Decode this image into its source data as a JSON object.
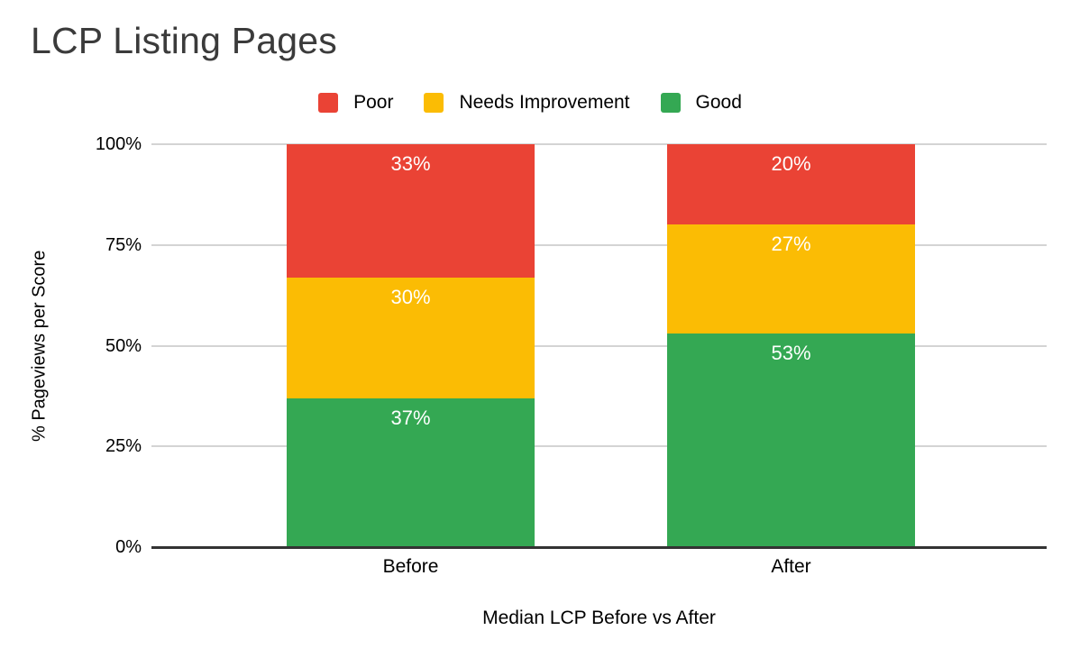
{
  "chart_data": {
    "type": "bar",
    "stacked": true,
    "title": "LCP Listing Pages",
    "xlabel": "Median LCP Before vs After",
    "ylabel": "% Pageviews per Score",
    "categories": [
      "Before",
      "After"
    ],
    "series": [
      {
        "name": "Poor",
        "color": "#EA4335",
        "values": [
          33,
          20
        ],
        "labels": [
          "33%",
          "20%"
        ]
      },
      {
        "name": "Needs Improvement",
        "color": "#FBBC04",
        "values": [
          30,
          27
        ],
        "labels": [
          "30%",
          "27%"
        ]
      },
      {
        "name": "Good",
        "color": "#34A853",
        "values": [
          37,
          53
        ],
        "labels": [
          "37%",
          "53%"
        ]
      }
    ],
    "stack_order": "top-to-bottom",
    "ylim": [
      0,
      100
    ],
    "y_ticks": [
      {
        "label": "0%",
        "value": 0
      },
      {
        "label": "25%",
        "value": 25
      },
      {
        "label": "50%",
        "value": 50
      },
      {
        "label": "75%",
        "value": 75
      },
      {
        "label": "100%",
        "value": 100
      }
    ],
    "grid": true,
    "legend_position": "top",
    "colors": {
      "title_text": "#3b3b3b",
      "axis_text": "#000000",
      "bar_label_text": "#ffffff",
      "gridline": "#d4d4d4",
      "axis_line": "#333333",
      "background": "#ffffff"
    }
  }
}
